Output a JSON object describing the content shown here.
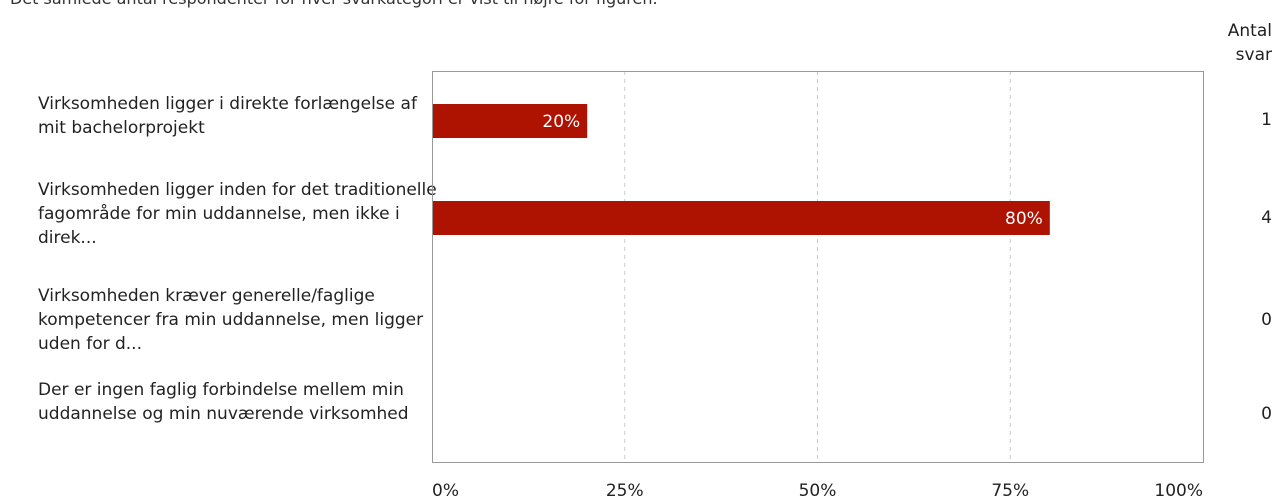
{
  "subtitle": "Det samlede antal respondenter for hver svarkategori er vist til højre for figuren.",
  "count_header": "Antal svar",
  "colors": {
    "bar": "#ae1200",
    "grid": "#cccccc",
    "frame": "#999999"
  },
  "chart_data": {
    "type": "bar",
    "orientation": "horizontal",
    "categories": [
      "Virksomheden ligger i direkte forlængelse af mit bachelorprojekt",
      "Virksomheden ligger inden for det traditionelle fagområde for min uddannelse, men ikke i direk...",
      "Virksomheden kræver generelle/faglige kompetencer fra min uddannelse, men ligger uden for d...",
      "Der er ingen faglig forbindelse mellem min uddannelse og min nuværende virksomhed"
    ],
    "values": [
      20,
      80,
      0,
      0
    ],
    "value_labels": [
      "20%",
      "80%",
      "",
      ""
    ],
    "counts": [
      "1",
      "4",
      "0",
      "0"
    ],
    "xlim": [
      0,
      100
    ],
    "x_ticks": [
      "0%",
      "25%",
      "50%",
      "75%",
      "100%"
    ],
    "grid": true
  }
}
